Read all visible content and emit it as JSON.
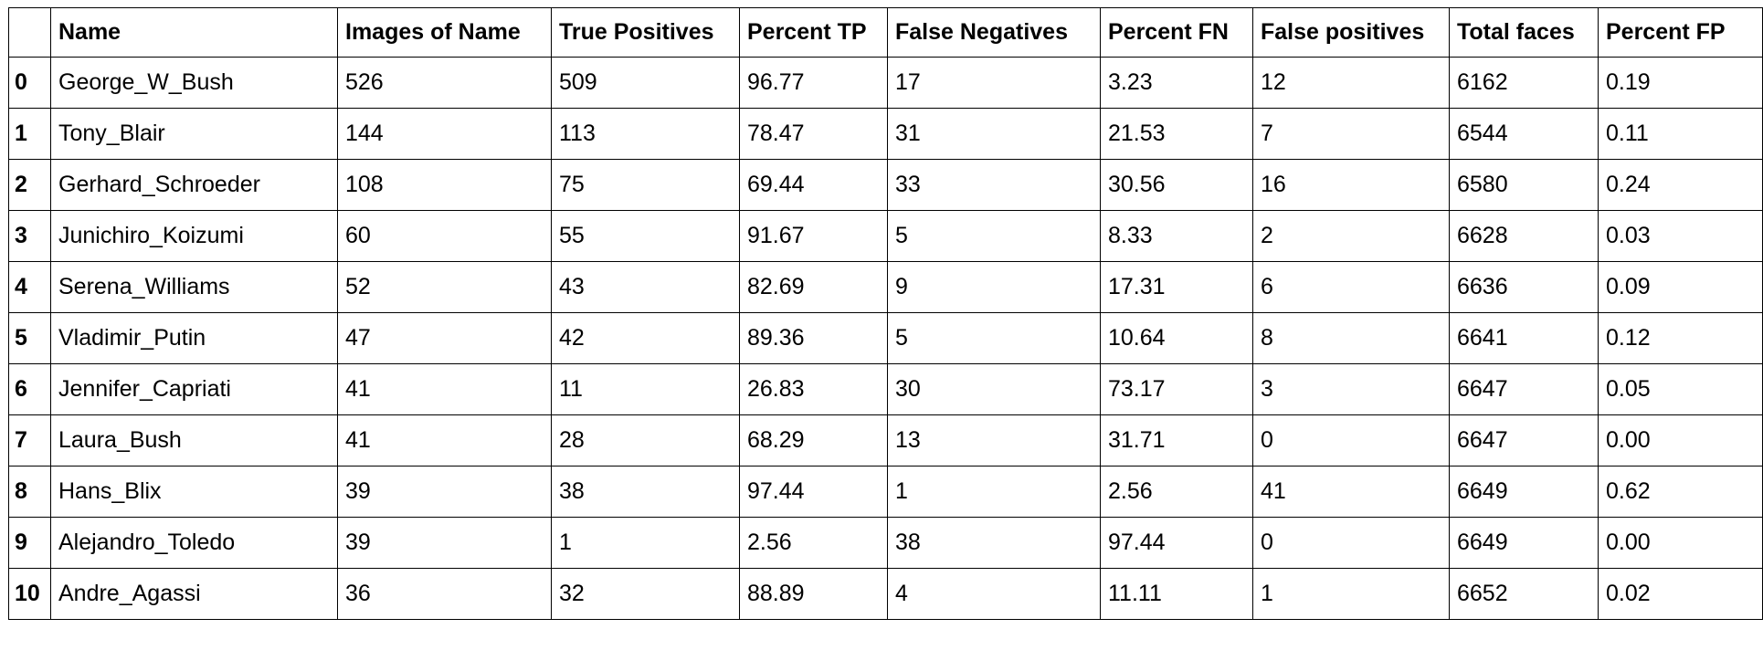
{
  "table": {
    "columns": [
      "",
      "Name",
      "Images of Name",
      "True Positives",
      "Percent TP",
      "False Negatives",
      "Percent FN",
      "False positives",
      "Total faces",
      "Percent FP"
    ],
    "rows": [
      [
        "0",
        "George_W_Bush",
        "526",
        "509",
        "96.77",
        "17",
        "3.23",
        "12",
        "6162",
        "0.19"
      ],
      [
        "1",
        "Tony_Blair",
        "144",
        "113",
        "78.47",
        "31",
        "21.53",
        "7",
        "6544",
        "0.11"
      ],
      [
        "2",
        "Gerhard_Schroeder",
        "108",
        "75",
        "69.44",
        "33",
        "30.56",
        "16",
        "6580",
        "0.24"
      ],
      [
        "3",
        "Junichiro_Koizumi",
        "60",
        "55",
        "91.67",
        "5",
        "8.33",
        "2",
        "6628",
        "0.03"
      ],
      [
        "4",
        "Serena_Williams",
        "52",
        "43",
        "82.69",
        "9",
        "17.31",
        "6",
        "6636",
        "0.09"
      ],
      [
        "5",
        "Vladimir_Putin",
        "47",
        "42",
        "89.36",
        "5",
        "10.64",
        "8",
        "6641",
        "0.12"
      ],
      [
        "6",
        "Jennifer_Capriati",
        "41",
        "11",
        "26.83",
        "30",
        "73.17",
        "3",
        "6647",
        "0.05"
      ],
      [
        "7",
        "Laura_Bush",
        "41",
        "28",
        "68.29",
        "13",
        "31.71",
        "0",
        "6647",
        "0.00"
      ],
      [
        "8",
        "Hans_Blix",
        "39",
        "38",
        "97.44",
        "1",
        "2.56",
        "41",
        "6649",
        "0.62"
      ],
      [
        "9",
        "Alejandro_Toledo",
        "39",
        "1",
        "2.56",
        "38",
        "97.44",
        "0",
        "6649",
        "0.00"
      ],
      [
        "10",
        "Andre_Agassi",
        "36",
        "32",
        "88.89",
        "4",
        "11.11",
        "1",
        "6652",
        "0.02"
      ]
    ]
  }
}
